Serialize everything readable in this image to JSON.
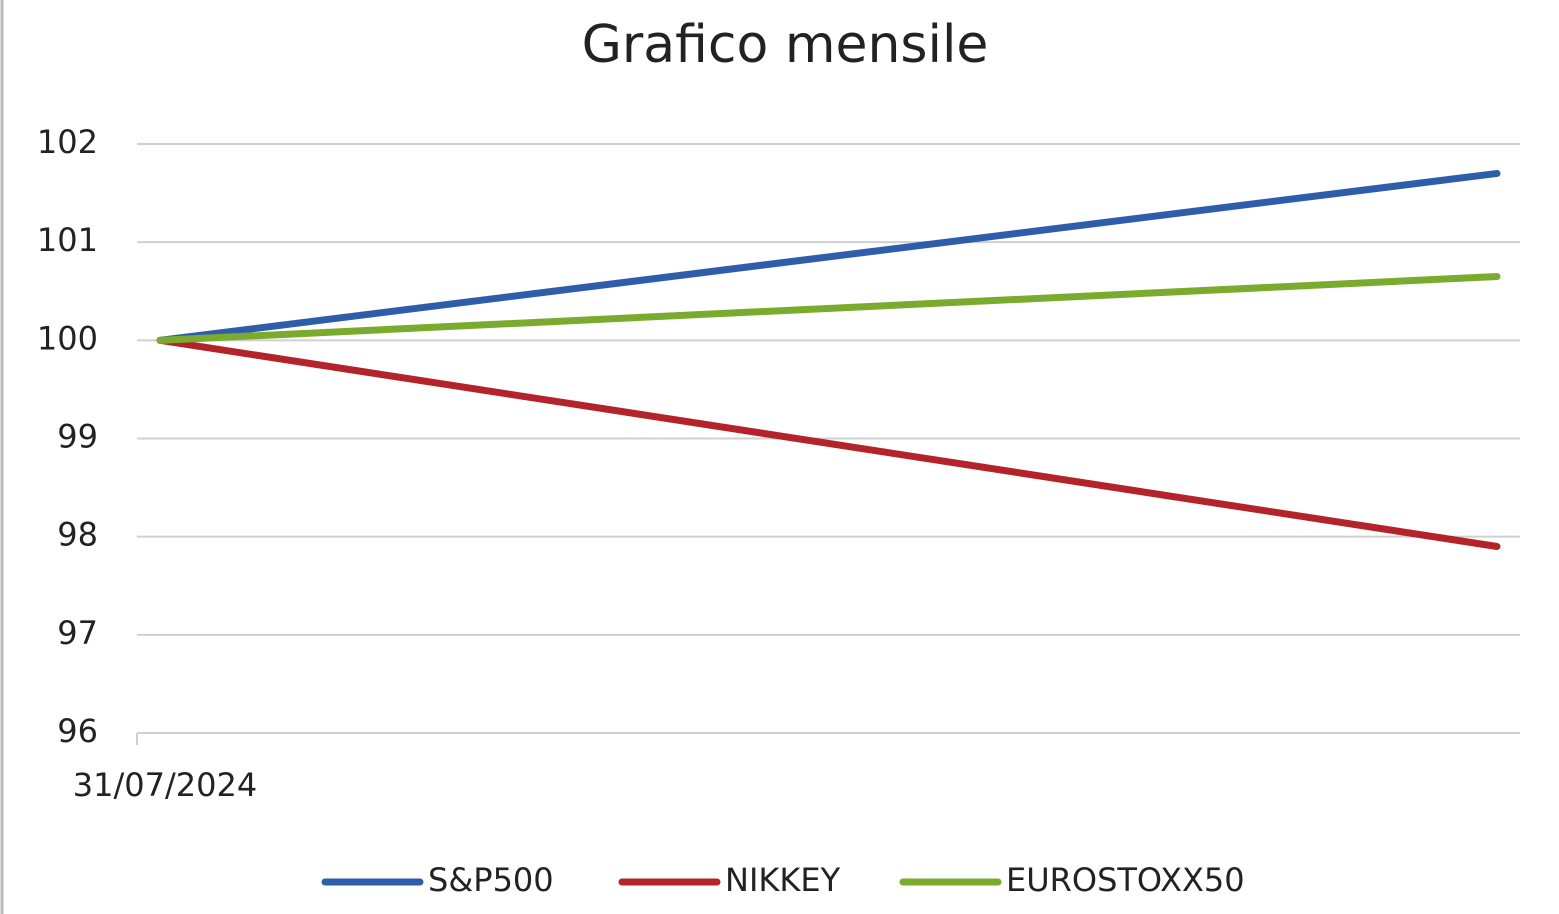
{
  "chart_data": {
    "type": "line",
    "title": "Grafico mensile",
    "categories": [
      "31/07/2024",
      null
    ],
    "series": [
      {
        "name": "S&P500",
        "color": "#2e5eaa",
        "values": [
          100,
          101.7
        ]
      },
      {
        "name": "NIKKEY",
        "color": "#b5232a",
        "values": [
          100,
          97.9
        ]
      },
      {
        "name": "EUROSTOXX50",
        "color": "#7aab2e",
        "values": [
          100,
          100.65
        ]
      }
    ],
    "ylim": [
      96,
      102
    ],
    "yticks": [
      96,
      97,
      98,
      99,
      100,
      101,
      102
    ],
    "grid": true,
    "legend": "bottom"
  }
}
